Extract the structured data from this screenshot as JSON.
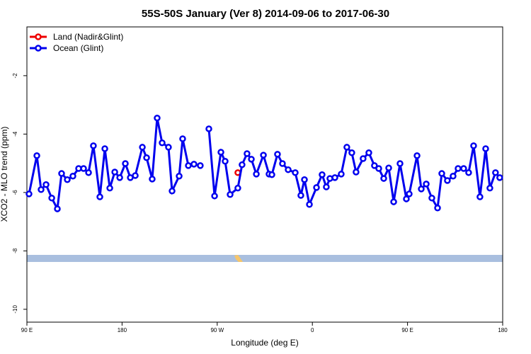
{
  "chart_data": {
    "type": "line",
    "title": "55S-50S January (Ver 8)   2014-09-06 to 2017-06-30",
    "x_label": "Longitude (deg E)",
    "y_label": "XCO2 - MLO trend (ppm)",
    "xlim": [
      90,
      540
    ],
    "ylim": [
      -10.44,
      -0.33
    ],
    "xticks": [
      {
        "value": 90,
        "label": "90 E"
      },
      {
        "value": 180,
        "label": "180"
      },
      {
        "value": 270,
        "label": "90 W"
      },
      {
        "value": 360,
        "label": "0"
      },
      {
        "value": 450,
        "label": "90 E"
      },
      {
        "value": 540,
        "label": "180"
      }
    ],
    "yticks": [
      -2,
      -4,
      -6,
      -8,
      -10
    ],
    "legend": "top-left",
    "series": [
      {
        "name": "Land (Nadir&Glint)",
        "color": "#ee0000",
        "x": [
          289.5
        ],
        "values": [
          -5.32
        ]
      },
      {
        "name": "Ocean (Glint)",
        "color": "#0000ee",
        "x": [
          92,
          99.4,
          103.4,
          108.1,
          113.5,
          118.8,
          122.8,
          128.2,
          133.5,
          138.9,
          143.6,
          148.3,
          152.9,
          159,
          163.7,
          168.4,
          173.1,
          177.8,
          183.1,
          187.8,
          192.5,
          199.2,
          203.2,
          208.5,
          213.2,
          217.9,
          223.9,
          227.3,
          234,
          237.3,
          242.7,
          248,
          254,
          258,
          262.1,
          267.5,
          273.5,
          277.5,
          282.2,
          289.5,
          293.5,
          298.2,
          302.3,
          307,
          313.7,
          319,
          321.7,
          327,
          331.7,
          337.1,
          343.8,
          349.1,
          352.5,
          357.2,
          363.9,
          369.2,
          373.2,
          376.6,
          381.3,
          387.3,
          392.6,
          397.3,
          401.3,
          408,
          413.4,
          418.7,
          422.8,
          427.5,
          432.2,
          436.9,
          442.9,
          448.9,
          451.6,
          459,
          463,
          467.7,
          473,
          478.4,
          482.4,
          487.7,
          493.1,
          497.8,
          503.1,
          507.8,
          512.5,
          518.5,
          523.9,
          527.9,
          533.2,
          537.2
        ],
        "values": [
          -6.05,
          -4.74,
          -5.9,
          -5.73,
          -6.19,
          -6.56,
          -5.35,
          -5.56,
          -5.44,
          -5.18,
          -5.18,
          -5.32,
          -4.4,
          -6.15,
          -4.5,
          -5.85,
          -5.3,
          -5.49,
          -5.01,
          -5.49,
          -5.42,
          -4.45,
          -4.81,
          -5.54,
          -3.45,
          -4.3,
          -4.45,
          -5.95,
          -5.44,
          -4.16,
          -5.08,
          -5.03,
          -5.08,
          null,
          -3.82,
          -6.12,
          -4.62,
          -4.93,
          -6.07,
          -5.85,
          -5.05,
          -4.67,
          -4.86,
          -5.37,
          -4.72,
          -5.37,
          -5.39,
          -4.69,
          -5.01,
          -5.22,
          -5.32,
          -6.1,
          -5.56,
          -6.41,
          -5.83,
          -5.39,
          -5.81,
          -5.52,
          -5.49,
          -5.37,
          -4.45,
          -4.64,
          -5.3,
          -4.84,
          -4.64,
          -5.08,
          -5.18,
          -5.52,
          -5.16,
          -6.32,
          -5.01,
          -6.22,
          -6.05,
          -4.74,
          -5.88,
          -5.71,
          -6.19,
          -6.53,
          -5.35,
          -5.59,
          -5.44,
          -5.18,
          -5.18,
          -5.32,
          -4.4,
          -6.15,
          -4.5,
          -5.85,
          -5.32,
          -5.49
        ]
      }
    ]
  }
}
